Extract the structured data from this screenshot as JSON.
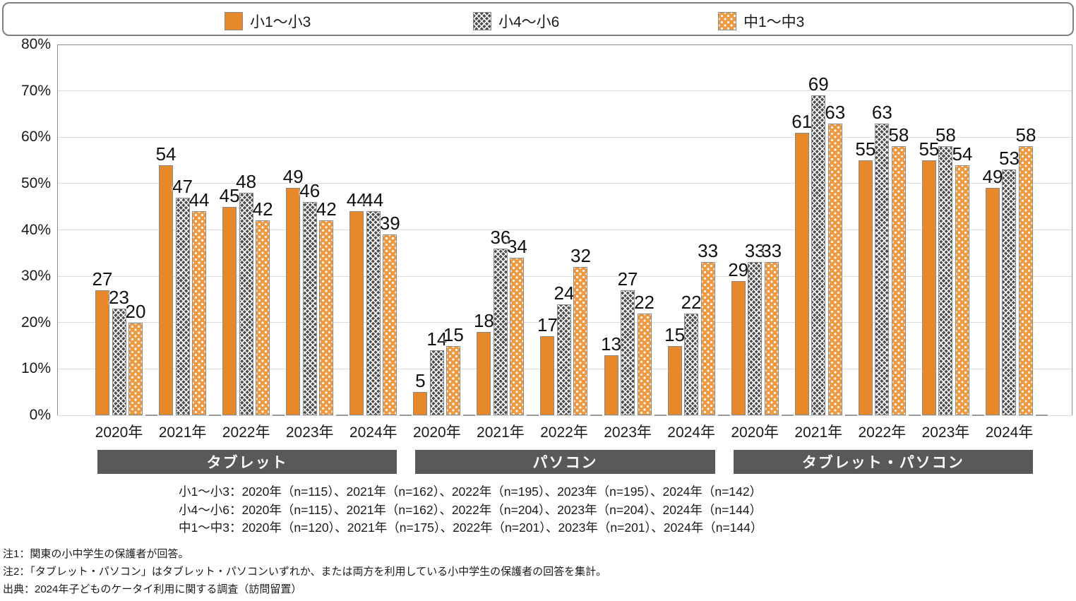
{
  "legend": {
    "items": [
      {
        "label": "小1～小3",
        "pattern": "solid-orange"
      },
      {
        "label": "小4～小6",
        "pattern": "crosshatch-gray"
      },
      {
        "label": "中1～中3",
        "pattern": "dotted-orange"
      }
    ]
  },
  "chart_data": {
    "type": "bar",
    "title": "",
    "ylabel": "",
    "ylim": [
      0,
      80
    ],
    "yticks": [
      "0%",
      "10%",
      "20%",
      "30%",
      "40%",
      "50%",
      "60%",
      "70%",
      "80%"
    ],
    "grid": true,
    "legend_position": "top",
    "series_names": [
      "小1～小3",
      "小4～小6",
      "中1～中3"
    ],
    "sections": [
      {
        "label": "タブレット",
        "categories": [
          "2020年",
          "2021年",
          "2022年",
          "2023年",
          "2024年"
        ],
        "series": [
          {
            "name": "小1～小3",
            "values": [
              27,
              54,
              45,
              49,
              44
            ]
          },
          {
            "name": "小4～小6",
            "values": [
              23,
              47,
              48,
              46,
              44
            ]
          },
          {
            "name": "中1～中3",
            "values": [
              20,
              44,
              42,
              42,
              39
            ]
          }
        ]
      },
      {
        "label": "パソコン",
        "categories": [
          "2020年",
          "2021年",
          "2022年",
          "2023年",
          "2024年"
        ],
        "series": [
          {
            "name": "小1～小3",
            "values": [
              5,
              18,
              17,
              13,
              15
            ]
          },
          {
            "name": "小4～小6",
            "values": [
              14,
              36,
              24,
              27,
              22
            ]
          },
          {
            "name": "中1～中3",
            "values": [
              15,
              34,
              32,
              22,
              33
            ]
          }
        ]
      },
      {
        "label": "タブレット・パソコン",
        "categories": [
          "2020年",
          "2021年",
          "2022年",
          "2023年",
          "2024年"
        ],
        "series": [
          {
            "name": "小1～小3",
            "values": [
              29,
              61,
              55,
              55,
              49
            ]
          },
          {
            "name": "小4～小6",
            "values": [
              33,
              69,
              63,
              58,
              53
            ]
          },
          {
            "name": "中1～中3",
            "values": [
              33,
              63,
              58,
              54,
              58
            ]
          }
        ]
      }
    ]
  },
  "sample_notes": [
    "小1～小3：2020年（n=115）、2021年（n=162）、2022年（n=195）、2023年（n=195）、2024年（n=142）",
    "小4～小6：2020年（n=115）、2021年（n=162）、2022年（n=204）、2023年（n=204）、2024年（n=144）",
    "中1～中3：2020年（n=120）、2021年（n=175）、2022年（n=201）、2023年（n=201）、2024年（n=144）"
  ],
  "footnotes": [
    "注1：関東の小中学生の保護者が回答。",
    "注2：「タブレット・パソコン」はタブレット・パソコンいずれか、または両方を利用している小中学生の保護者の回答を集計。",
    "出典：2024年子どものケータイ利用に関する調査（訪問留置）"
  ],
  "colors": {
    "bar_solid": "#e7892b",
    "bar_crosshatch_base": "#4d4d4d",
    "bar_dots_base": "#ee9a42",
    "pattern_white": "#ffffff",
    "bar_border": "#8a8a8a",
    "category_box": "#595959",
    "category_text": "#ffffff",
    "gridline": "#dcdcdc",
    "plot_border": "#8c8c8c",
    "text": "#1a1a1a"
  }
}
